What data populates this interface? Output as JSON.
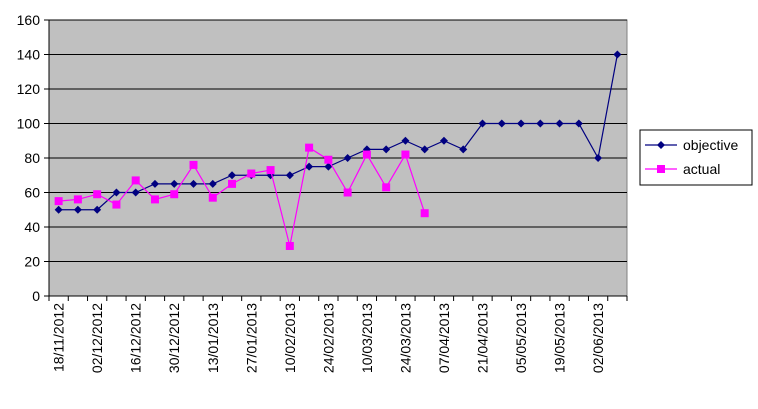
{
  "chart_data": {
    "type": "line",
    "title": "",
    "xlabel": "",
    "ylabel": "",
    "ylim": [
      0,
      160
    ],
    "ytick_step": 20,
    "grid": "horizontal",
    "plot_background": "#c0c0c0",
    "legend_position": "right",
    "x_tick_labels": [
      "18/11/2012",
      "02/12/2012",
      "16/12/2012",
      "30/12/2012",
      "13/01/2013",
      "27/01/2013",
      "10/02/2013",
      "24/02/2013",
      "10/03/2013",
      "24/03/2013",
      "07/04/2013",
      "21/04/2013",
      "05/05/2013",
      "19/05/2013",
      "02/06/2013"
    ],
    "x": [
      "18/11/2012",
      "25/11/2012",
      "02/12/2012",
      "09/12/2012",
      "16/12/2012",
      "23/12/2012",
      "30/12/2012",
      "06/01/2013",
      "13/01/2013",
      "20/01/2013",
      "27/01/2013",
      "03/02/2013",
      "10/02/2013",
      "17/02/2013",
      "24/02/2013",
      "03/03/2013",
      "10/03/2013",
      "17/03/2013",
      "24/03/2013",
      "31/03/2013",
      "07/04/2013",
      "14/04/2013",
      "21/04/2013",
      "28/04/2013",
      "05/05/2013",
      "12/05/2013",
      "19/05/2013",
      "26/05/2013",
      "02/06/2013",
      "09/06/2013"
    ],
    "series": [
      {
        "name": "objective",
        "color": "#000080",
        "marker": "diamond",
        "values": [
          50,
          50,
          50,
          60,
          60,
          65,
          65,
          65,
          65,
          70,
          70,
          70,
          70,
          75,
          75,
          80,
          85,
          85,
          90,
          85,
          90,
          85,
          100,
          100,
          100,
          100,
          100,
          100,
          80,
          140
        ]
      },
      {
        "name": "actual",
        "color": "#ff00ff",
        "marker": "square",
        "values": [
          55,
          56,
          59,
          53,
          67,
          56,
          59,
          76,
          57,
          65,
          71,
          73,
          29,
          86,
          79,
          60,
          82,
          63,
          82,
          48,
          null,
          null,
          null,
          null,
          null,
          null,
          null,
          null,
          null,
          null
        ]
      }
    ]
  }
}
